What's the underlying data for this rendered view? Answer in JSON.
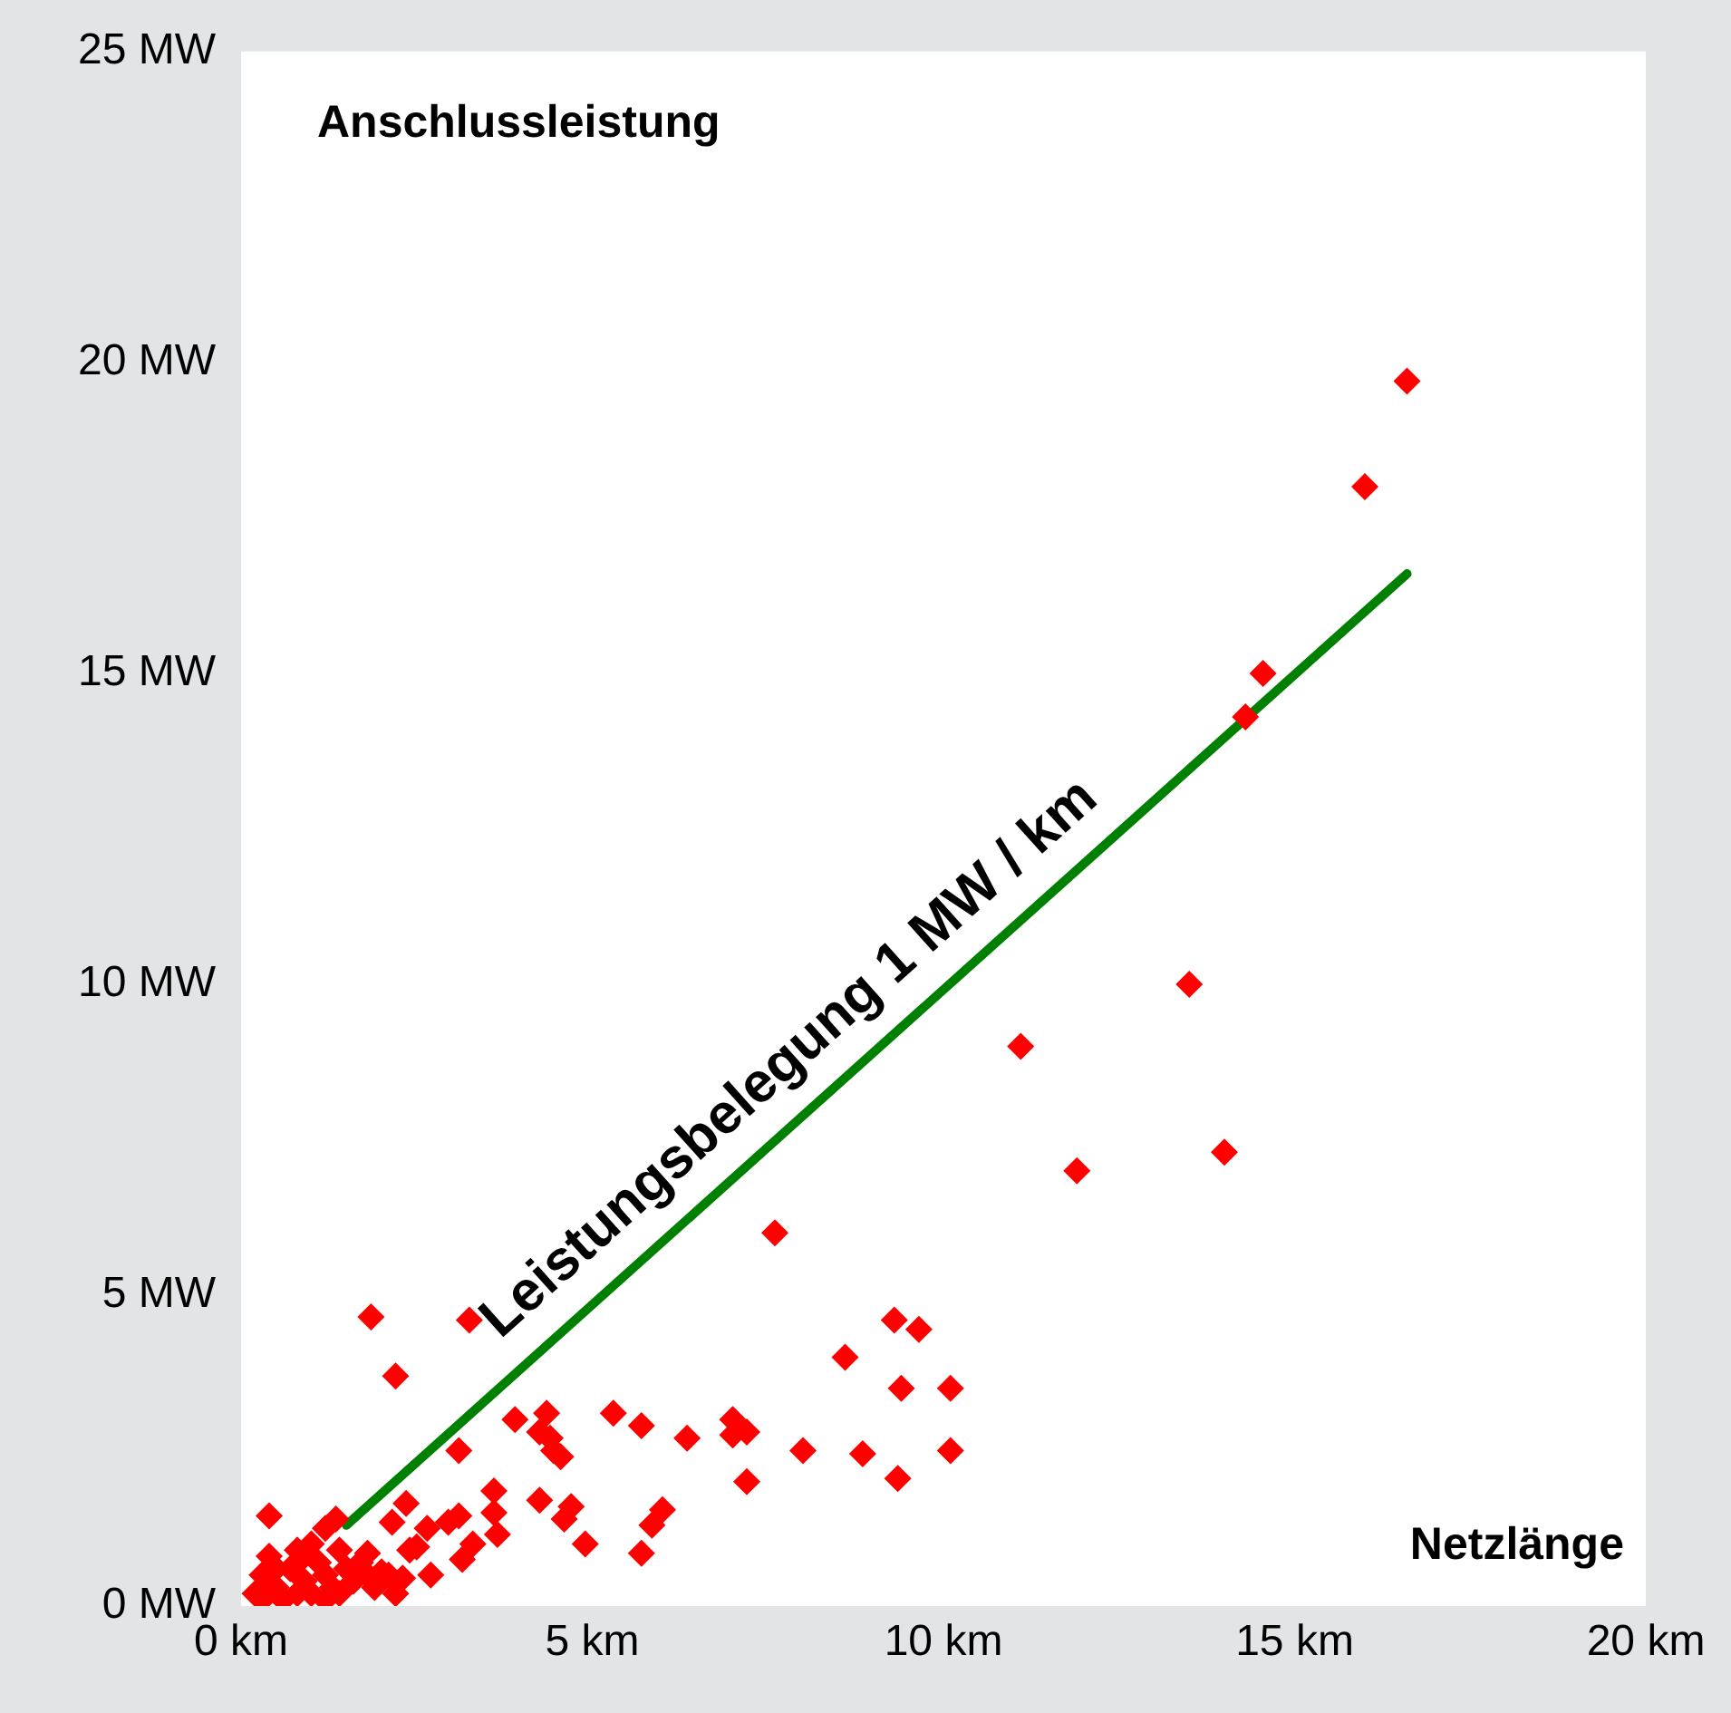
{
  "chart_data": {
    "type": "scatter",
    "title": "Anschlussleistung",
    "xlabel": "Netzlänge",
    "xlim": [
      0,
      20
    ],
    "xticks": [
      {
        "value": 0,
        "label": "0 km"
      },
      {
        "value": 5,
        "label": "5 km"
      },
      {
        "value": 10,
        "label": "10 km"
      },
      {
        "value": 15,
        "label": "15 km"
      },
      {
        "value": 20,
        "label": "20 km"
      }
    ],
    "ylim": [
      0,
      25
    ],
    "yticks": [
      {
        "value": 0,
        "label": "0 MW"
      },
      {
        "value": 5,
        "label": "5 MW"
      },
      {
        "value": 10,
        "label": "10 MW"
      },
      {
        "value": 15,
        "label": "15 MW"
      },
      {
        "value": 20,
        "label": "20 MW"
      },
      {
        "value": 25,
        "label": "25 MW"
      }
    ],
    "grid": false,
    "legend": false,
    "marker": "diamond",
    "annotations": [
      "Leistungsbelegung 1 MW / km"
    ],
    "series": [
      {
        "type": "line",
        "color": "#008000",
        "marker": "none",
        "x": [
          1.5,
          16.6
        ],
        "values": [
          1.3,
          16.6
        ]
      },
      {
        "type": "scatter",
        "color": "#ff0000",
        "x": [
          16.6,
          16.0,
          14.55,
          14.3,
          13.5,
          14.0,
          11.1,
          11.9,
          7.6,
          8.6,
          9.3,
          9.65,
          9.4,
          10.1,
          8.0,
          8.85,
          9.35,
          10.1,
          7.2,
          5.3,
          5.7,
          6.35,
          7.0,
          7.2,
          7.0,
          4.35,
          4.4,
          4.55,
          4.7,
          4.6,
          4.9,
          6.0,
          5.85,
          5.7,
          1.85,
          3.25,
          2.2,
          3.9,
          4.25,
          4.45,
          3.1,
          0.4,
          1.35,
          1.2,
          2.35,
          2.15,
          3.6,
          3.6,
          3.65,
          3.1,
          2.95,
          2.65,
          2.5,
          3.3,
          3.15,
          4.25,
          1.8,
          2.0,
          2.3,
          2.7,
          0.2,
          0.3,
          0.4,
          0.5,
          0.6,
          0.7,
          0.8,
          0.9,
          1.0,
          1.1,
          1.2,
          1.3,
          1.4,
          1.5,
          1.6,
          0.3,
          0.5,
          0.9,
          1.0,
          1.2,
          1.4,
          0.8,
          1.7,
          1.9,
          2.1,
          2.4,
          2.2,
          1.8
        ],
        "values": [
          19.7,
          18.0,
          15.0,
          14.3,
          10.0,
          7.3,
          9.0,
          7.0,
          6.0,
          4.0,
          4.6,
          4.45,
          3.5,
          3.5,
          2.5,
          2.45,
          2.05,
          2.5,
          2.0,
          3.1,
          2.9,
          2.7,
          3.0,
          2.8,
          2.75,
          3.1,
          2.7,
          2.4,
          1.6,
          1.4,
          1.0,
          1.55,
          1.3,
          0.85,
          4.65,
          4.6,
          3.7,
          3.0,
          2.8,
          2.5,
          2.5,
          1.45,
          1.4,
          1.25,
          1.65,
          1.35,
          1.85,
          1.5,
          1.15,
          1.45,
          1.35,
          1.25,
          0.95,
          1.0,
          0.75,
          1.7,
          0.85,
          0.55,
          0.45,
          0.5,
          0.2,
          0.5,
          0.8,
          0.3,
          0.1,
          0.6,
          0.9,
          0.4,
          0.2,
          0.7,
          0.5,
          0.3,
          0.9,
          0.6,
          0.4,
          0.1,
          0.6,
          0.8,
          1.0,
          0.1,
          0.2,
          0.2,
          0.7,
          0.3,
          0.5,
          0.9,
          0.2,
          0.5
        ]
      }
    ]
  }
}
